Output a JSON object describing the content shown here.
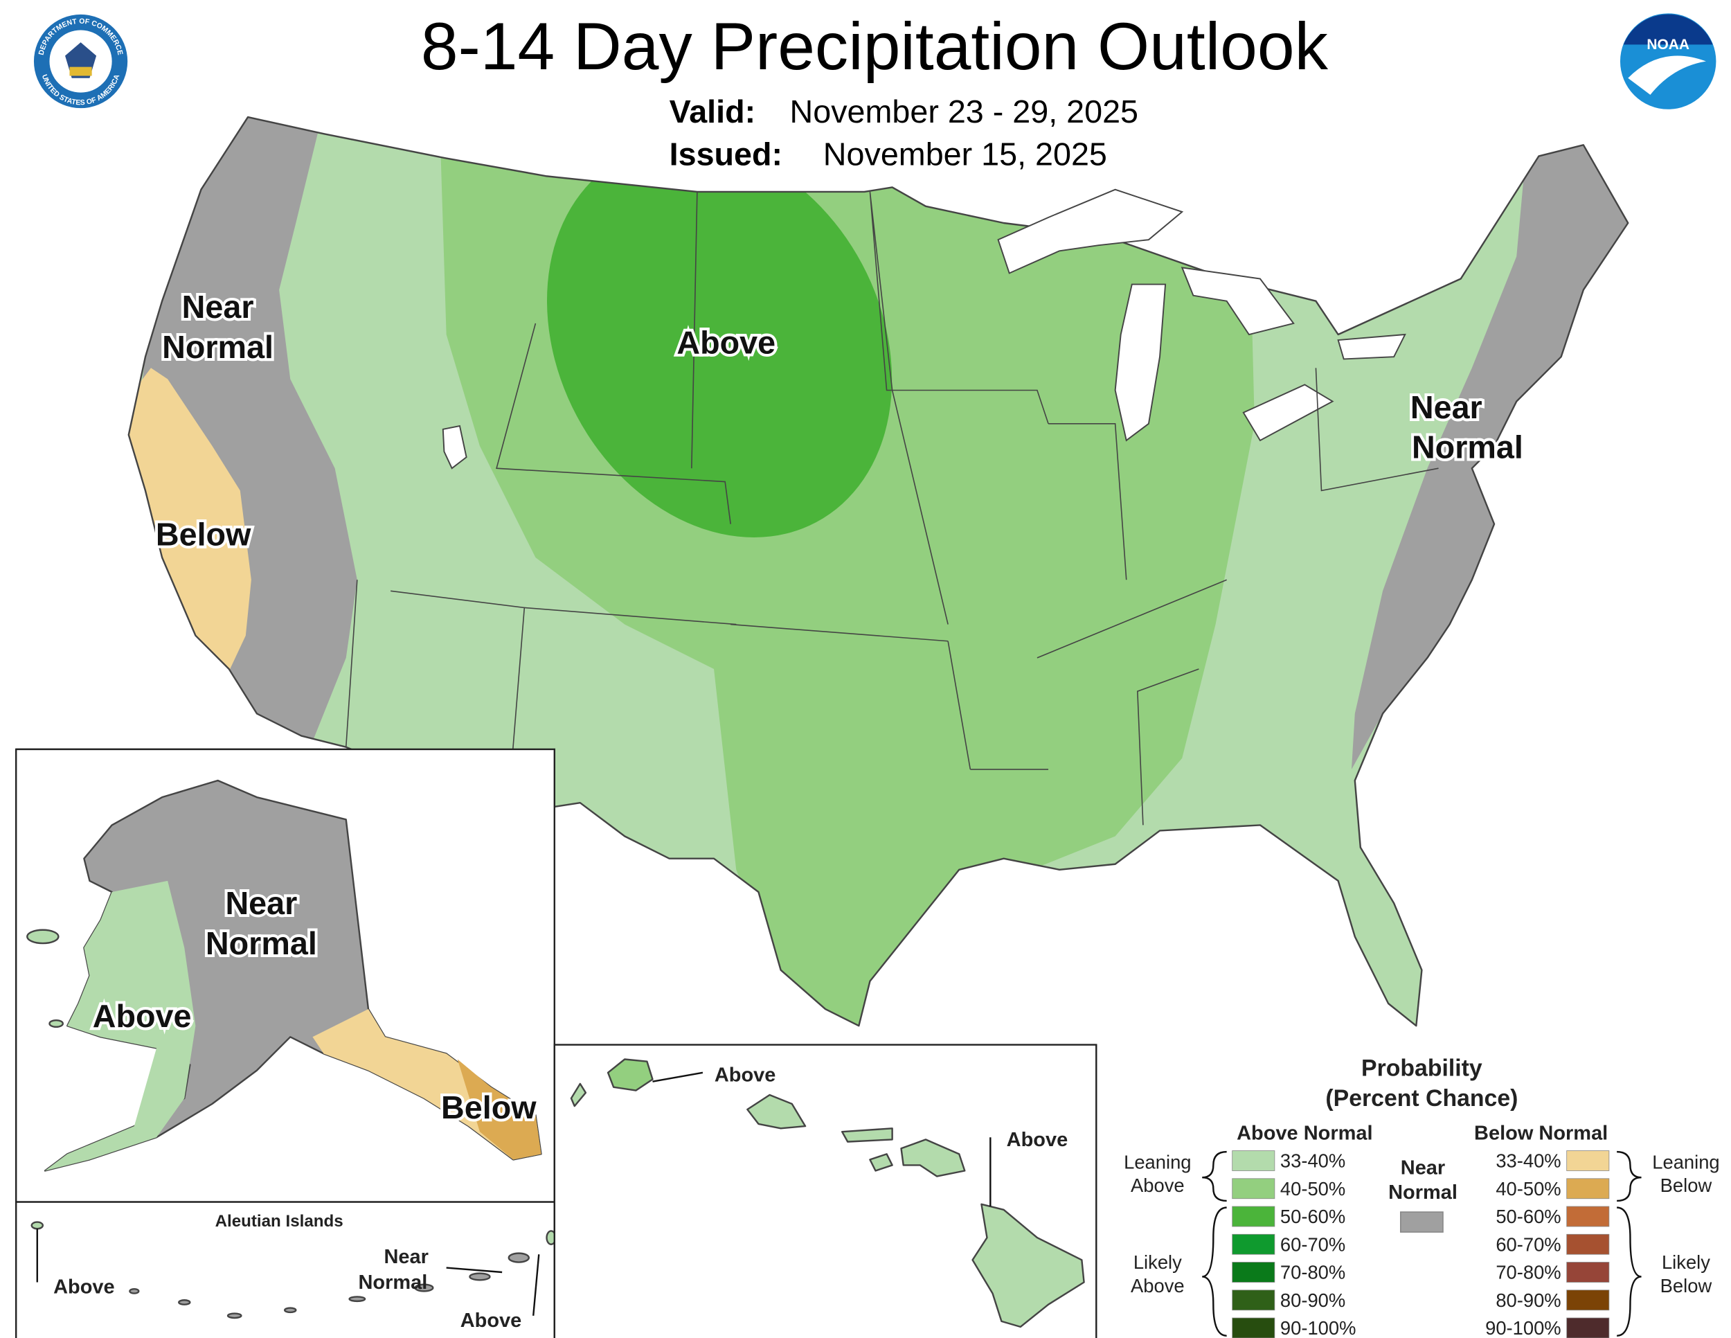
{
  "header": {
    "title": "8-14 Day Precipitation Outlook",
    "valid_label": "Valid:",
    "valid": "November 23 - 29, 2025",
    "issued_label": "Issued:",
    "issued": "November 15, 2025"
  },
  "logos": {
    "commerce_top": "DEPARTMENT OF COMMERCE",
    "commerce_bottom": "UNITED STATES OF AMERICA",
    "noaa": "NOAA"
  },
  "conus_labels": [
    [
      "Near",
      "Normal"
    ],
    [
      "Below"
    ],
    [
      "Above"
    ],
    [
      "Near",
      "Normal"
    ]
  ],
  "alaska_labels": [
    [
      "Near",
      "Normal"
    ],
    [
      "Above"
    ],
    [
      "Below"
    ]
  ],
  "aleutian": {
    "title": "Aleutian Islands",
    "labels": [
      [
        "Above"
      ],
      [
        "Near",
        "Normal"
      ],
      [
        "Above"
      ]
    ]
  },
  "hawaii_labels": [
    [
      "Above"
    ],
    [
      "Above"
    ]
  ],
  "legend": {
    "title": [
      "Probability",
      "(Percent Chance)"
    ],
    "above_header": "Above Normal",
    "below_header": "Below Normal",
    "near_header": [
      "Near",
      "Normal"
    ],
    "near_color": "#a0a0a0",
    "leaning_above": [
      "Leaning",
      "Above"
    ],
    "likely_above": [
      "Likely",
      "Above"
    ],
    "leaning_below": [
      "Leaning",
      "Below"
    ],
    "likely_below": [
      "Likely",
      "Below"
    ],
    "above": [
      {
        "label": "33-40%",
        "color": "#b3dbac"
      },
      {
        "label": "40-50%",
        "color": "#93cf7f"
      },
      {
        "label": "50-60%",
        "color": "#4bb43a"
      },
      {
        "label": "60-70%",
        "color": "#0f9a2e"
      },
      {
        "label": "70-80%",
        "color": "#0a7a1a"
      },
      {
        "label": "80-90%",
        "color": "#2f6018"
      },
      {
        "label": "90-100%",
        "color": "#274d0f"
      }
    ],
    "below": [
      {
        "label": "33-40%",
        "color": "#f2d595"
      },
      {
        "label": "40-50%",
        "color": "#dcaa52"
      },
      {
        "label": "50-60%",
        "color": "#c26c37"
      },
      {
        "label": "60-70%",
        "color": "#a65130"
      },
      {
        "label": "70-80%",
        "color": "#964538"
      },
      {
        "label": "80-90%",
        "color": "#7b4306"
      },
      {
        "label": "90-100%",
        "color": "#4e2b2c"
      }
    ]
  }
}
